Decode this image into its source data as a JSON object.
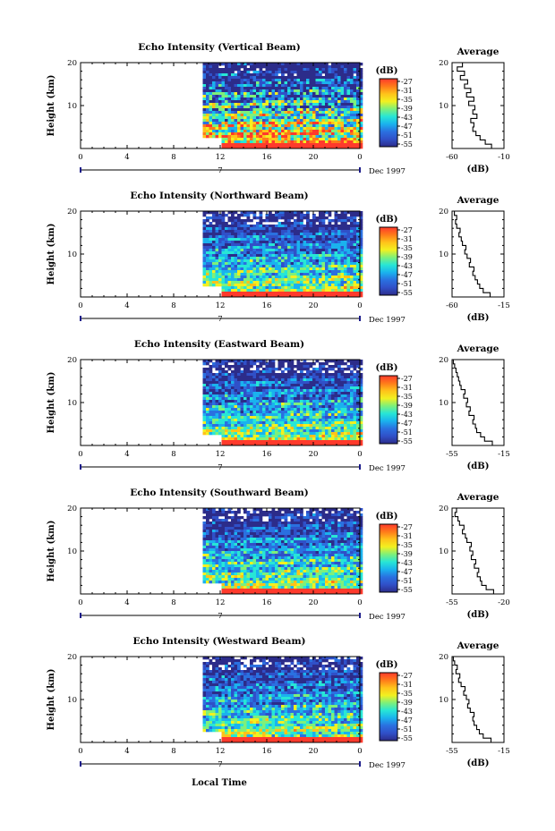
{
  "figure": {
    "bottom_xlabel": "Local Time",
    "month_label": "Dec 1997",
    "date_marker": "7",
    "colorbar_label": "(dB)",
    "colorbar_ticks": [
      "-27",
      "-31",
      "-35",
      "-39",
      "-43",
      "-47",
      "-51",
      "-55"
    ],
    "colorscale": [
      "#ff3a2c",
      "#ff7a1a",
      "#ffc21a",
      "#f2f020",
      "#7ef07a",
      "#27e6d6",
      "#1ab2ee",
      "#2a70e0",
      "#3050c8",
      "#2c2c8a"
    ]
  },
  "chart_data": [
    {
      "type": "heatmap",
      "title": "Echo Intensity (Vertical Beam)",
      "ylabel": "Height (km)",
      "xlim": [
        0,
        24
      ],
      "ylim": [
        0,
        20
      ],
      "x_ticks": [
        "0",
        "4",
        "8",
        "12",
        "16",
        "20",
        "0"
      ],
      "y_ticks": [
        "20",
        "10"
      ],
      "data_start_hour": 10.5,
      "avg_panel": {
        "type": "line",
        "title": "Average",
        "xlabel": "(dB)",
        "xlim": [
          -60,
          -10
        ],
        "x_ticks": [
          "-60",
          "-10"
        ],
        "y_ticks": [
          "20",
          "10"
        ],
        "height_km": [
          0,
          1,
          2,
          3,
          4,
          5,
          6,
          7,
          8,
          9,
          10,
          11,
          12,
          13,
          14,
          15,
          16,
          17,
          18,
          19,
          20
        ],
        "values_db": [
          -10,
          -22,
          -28,
          -33,
          -37,
          -40,
          -39,
          -42,
          -36,
          -40,
          -38,
          -44,
          -39,
          -46,
          -42,
          -48,
          -45,
          -52,
          -48,
          -55,
          -50
        ]
      }
    },
    {
      "type": "heatmap",
      "title": "Echo Intensity (Northward Beam)",
      "ylabel": "Height (km)",
      "xlim": [
        0,
        24
      ],
      "ylim": [
        0,
        20
      ],
      "x_ticks": [
        "0",
        "4",
        "8",
        "12",
        "16",
        "20",
        "0"
      ],
      "y_ticks": [
        "20",
        "10"
      ],
      "data_start_hour": 10.5,
      "avg_panel": {
        "type": "line",
        "title": "Average",
        "xlabel": "(dB)",
        "xlim": [
          -60,
          -15
        ],
        "x_ticks": [
          "-60",
          "-15"
        ],
        "y_ticks": [
          "20",
          "10"
        ],
        "height_km": [
          0,
          1,
          2,
          3,
          4,
          5,
          6,
          7,
          8,
          9,
          10,
          11,
          12,
          13,
          14,
          15,
          16,
          17,
          18,
          19,
          20
        ],
        "values_db": [
          -15,
          -27,
          -33,
          -36,
          -38,
          -40,
          -42,
          -41,
          -45,
          -44,
          -47,
          -49,
          -48,
          -51,
          -52,
          -54,
          -53,
          -56,
          -57,
          -56,
          -58
        ]
      }
    },
    {
      "type": "heatmap",
      "title": "Echo Intensity (Eastward Beam)",
      "ylabel": "Height (km)",
      "xlim": [
        0,
        24
      ],
      "ylim": [
        0,
        20
      ],
      "x_ticks": [
        "0",
        "4",
        "8",
        "12",
        "16",
        "20",
        "0"
      ],
      "y_ticks": [
        "20",
        "10"
      ],
      "data_start_hour": 10.5,
      "avg_panel": {
        "type": "line",
        "title": "Average",
        "xlabel": "(dB)",
        "xlim": [
          -55,
          -15
        ],
        "x_ticks": [
          "-55",
          "-15"
        ],
        "y_ticks": [
          "20",
          "10"
        ],
        "height_km": [
          0,
          1,
          2,
          3,
          4,
          5,
          6,
          7,
          8,
          9,
          10,
          11,
          12,
          13,
          14,
          15,
          16,
          17,
          18,
          19,
          20
        ],
        "values_db": [
          -15,
          -24,
          -30,
          -33,
          -36,
          -37,
          -39,
          -38,
          -42,
          -41,
          -44,
          -43,
          -46,
          -45,
          -48,
          -49,
          -50,
          -51,
          -52,
          -53,
          -54
        ]
      }
    },
    {
      "type": "heatmap",
      "title": "Echo Intensity (Southward Beam)",
      "ylabel": "Height (km)",
      "xlim": [
        0,
        24
      ],
      "ylim": [
        0,
        20
      ],
      "x_ticks": [
        "0",
        "4",
        "8",
        "12",
        "16",
        "20",
        "0"
      ],
      "y_ticks": [
        "20",
        "10"
      ],
      "data_start_hour": 10.5,
      "avg_panel": {
        "type": "line",
        "title": "Average",
        "xlabel": "(dB)",
        "xlim": [
          -55,
          -20
        ],
        "x_ticks": [
          "-55",
          "-20"
        ],
        "y_ticks": [
          "20",
          "10"
        ],
        "height_km": [
          0,
          1,
          2,
          3,
          4,
          5,
          6,
          7,
          8,
          9,
          10,
          11,
          12,
          13,
          14,
          15,
          16,
          17,
          18,
          19,
          20
        ],
        "values_db": [
          -20,
          -27,
          -32,
          -35,
          -36,
          -38,
          -37,
          -40,
          -39,
          -42,
          -41,
          -43,
          -42,
          -45,
          -46,
          -48,
          -47,
          -50,
          -51,
          -53,
          -52
        ]
      }
    },
    {
      "type": "heatmap",
      "title": "Echo Intensity (Westward Beam)",
      "ylabel": "Height (km)",
      "xlim": [
        0,
        24
      ],
      "ylim": [
        0,
        20
      ],
      "x_ticks": [
        "0",
        "4",
        "8",
        "12",
        "16",
        "20",
        "0"
      ],
      "y_ticks": [
        "20",
        "10"
      ],
      "data_start_hour": 10.5,
      "avg_panel": {
        "type": "line",
        "title": "Average",
        "xlabel": "(dB)",
        "xlim": [
          -55,
          -15
        ],
        "x_ticks": [
          "-55",
          "-15"
        ],
        "y_ticks": [
          "20",
          "10"
        ],
        "height_km": [
          0,
          1,
          2,
          3,
          4,
          5,
          6,
          7,
          8,
          9,
          10,
          11,
          12,
          13,
          14,
          15,
          16,
          17,
          18,
          19,
          20
        ],
        "values_db": [
          -15,
          -25,
          -31,
          -34,
          -36,
          -38,
          -39,
          -38,
          -41,
          -43,
          -42,
          -44,
          -46,
          -45,
          -48,
          -50,
          -49,
          -52,
          -51,
          -53,
          -54
        ]
      }
    }
  ]
}
